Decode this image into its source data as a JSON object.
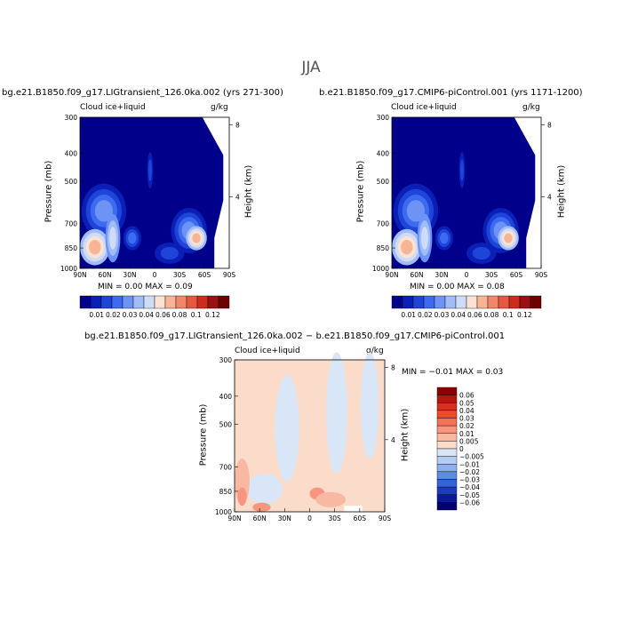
{
  "page_title": "JJA",
  "chart_data": [
    {
      "type": "heatmap",
      "title": "bg.e21.B1850.f09_g17.LIGtransient_126.0ka.002 (yrs 271-300)",
      "left_label": "Cloud ice+liquid",
      "units": "g/kg",
      "xlabel": "",
      "ylabel": "Pressure (mb)",
      "right_ylabel": "Height (km)",
      "x_ticks": [
        "90N",
        "60N",
        "30N",
        "0",
        "30S",
        "60S",
        "90S"
      ],
      "y_ticks": [
        "300",
        "400",
        "500",
        "700",
        "850",
        "1000"
      ],
      "right_ticks": [
        "8",
        "4"
      ],
      "stats_text": "MIN =    0.00   MAX =    0.09",
      "min": "0.00",
      "max": "0.09",
      "colorbar_levels": [
        "0.01",
        "0.02",
        "0.03",
        "0.04",
        "0.06",
        "0.08",
        "0.1",
        "0.12"
      ],
      "colorbar_colors": [
        "#00008b",
        "#0a1fb5",
        "#1f45d8",
        "#3c6af0",
        "#6d94f5",
        "#a1bcf7",
        "#cfdcf7",
        "#fbe2d5",
        "#f7b596",
        "#f2866b",
        "#e8573f",
        "#cd2b1e",
        "#9b1010",
        "#6f0000"
      ]
    },
    {
      "type": "heatmap",
      "title": "b.e21.B1850.f09_g17.CMIP6-piControl.001 (yrs 1171-1200)",
      "left_label": "Cloud ice+liquid",
      "units": "g/kg",
      "xlabel": "",
      "ylabel": "Pressure (mb)",
      "right_ylabel": "Height (km)",
      "x_ticks": [
        "90N",
        "60N",
        "30N",
        "0",
        "30S",
        "60S",
        "90S"
      ],
      "y_ticks": [
        "300",
        "400",
        "500",
        "700",
        "850",
        "1000"
      ],
      "right_ticks": [
        "8",
        "4"
      ],
      "stats_text": "MIN =    0.00   MAX =    0.08",
      "min": "0.00",
      "max": "0.08",
      "colorbar_levels": [
        "0.01",
        "0.02",
        "0.03",
        "0.04",
        "0.06",
        "0.08",
        "0.1",
        "0.12"
      ],
      "colorbar_colors": [
        "#00008b",
        "#0a1fb5",
        "#1f45d8",
        "#3c6af0",
        "#6d94f5",
        "#a1bcf7",
        "#cfdcf7",
        "#fbe2d5",
        "#f7b596",
        "#f2866b",
        "#e8573f",
        "#cd2b1e",
        "#9b1010",
        "#6f0000"
      ]
    },
    {
      "type": "heatmap",
      "title": "bg.e21.B1850.f09_g17.LIGtransient_126.0ka.002 − b.e21.B1850.f09_g17.CMIP6-piControl.001",
      "left_label": "Cloud ice+liquid",
      "units": "g/kg",
      "xlabel": "",
      "ylabel": "Pressure (mb)",
      "right_ylabel": "Height (km)",
      "x_ticks": [
        "90N",
        "60N",
        "30N",
        "0",
        "30S",
        "60S",
        "90S"
      ],
      "y_ticks": [
        "300",
        "400",
        "500",
        "700",
        "850",
        "1000"
      ],
      "right_ticks": [
        "8",
        "4"
      ],
      "stats_text": "MIN =   −0.01   MAX =    0.03",
      "min": "-0.01",
      "max": "0.03",
      "colorbar_levels": [
        "0.06",
        "0.05",
        "0.04",
        "0.03",
        "0.02",
        "0.01",
        "0.005",
        "0",
        "−0.005",
        "−0.01",
        "−0.02",
        "−0.03",
        "−0.04",
        "−0.05",
        "−0.06"
      ],
      "colorbar_colors": [
        "#8b0000",
        "#b3170f",
        "#d7301f",
        "#ee4a2e",
        "#f4715a",
        "#f7957e",
        "#f9b8a2",
        "#fbdcca",
        "#d8e6f8",
        "#b5cdf5",
        "#8db0f0",
        "#5f8ae6",
        "#3862d8",
        "#1c3cc0",
        "#0a1a96",
        "#00006e"
      ]
    }
  ]
}
